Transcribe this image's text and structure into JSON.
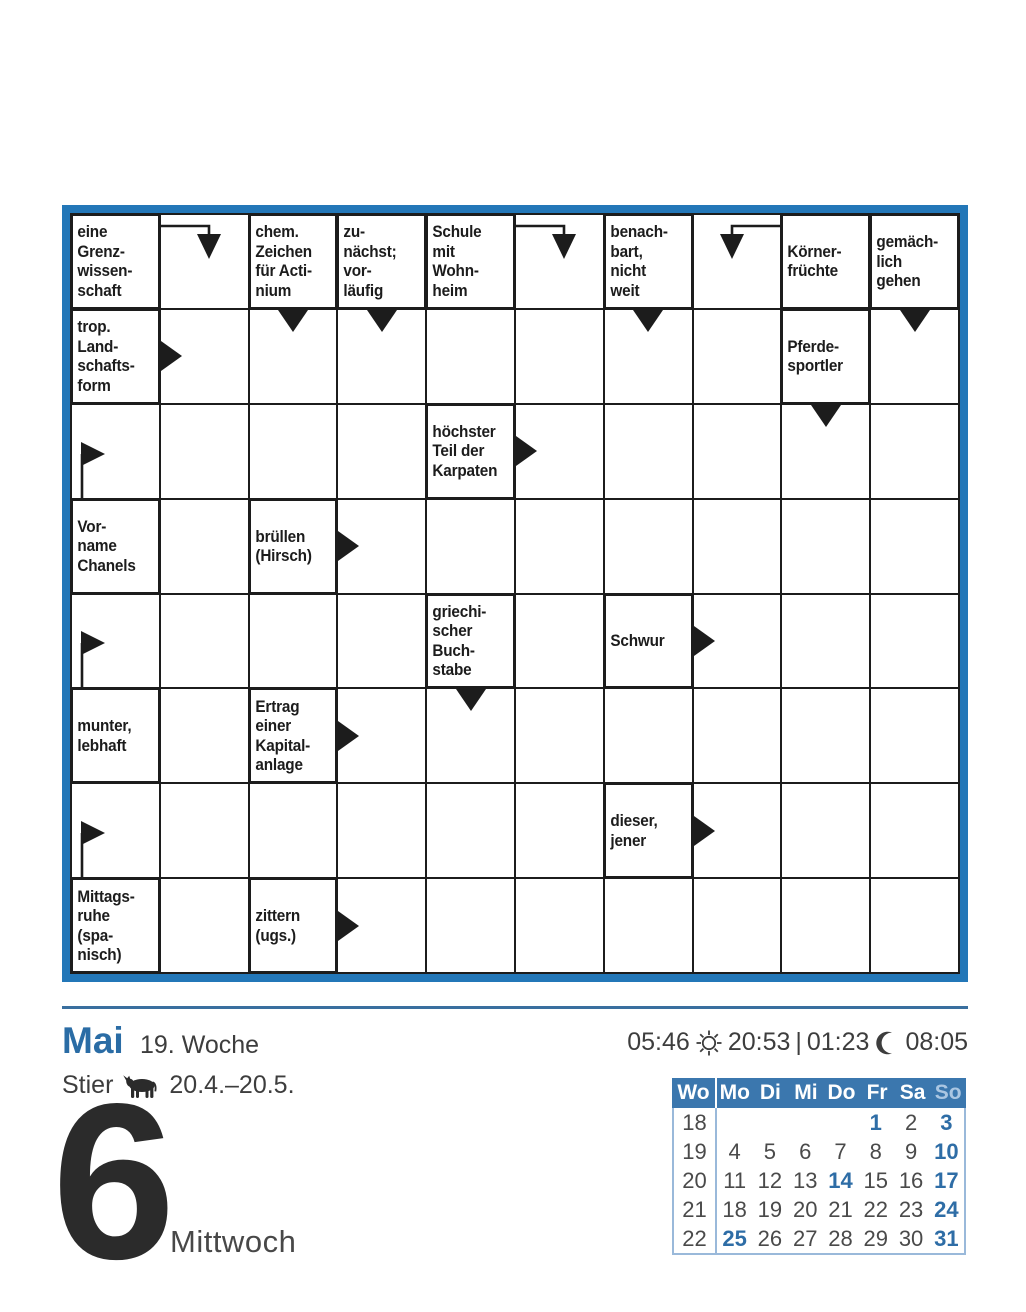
{
  "colors": {
    "frame_blue": "#2377b8",
    "rule_blue": "#3a6f9f",
    "month_blue": "#2a6ca5",
    "calendar_header_bg": "#3b77ae",
    "calendar_day_highlight": "#2e6da6",
    "calendar_sunday_header": "#aac6e2",
    "ink": "#1c1c1c",
    "gray_text": "#3d3d3d"
  },
  "puzzle": {
    "columns": 10,
    "rows": [
      {
        "cells": [
          {
            "clue": "eine\nGrenz-\nwissen-\nschaft"
          },
          {
            "arrows": [
              "elbow-down-from-left"
            ]
          },
          {
            "clue": "chem.\nZeichen\nfür Acti-\nnium"
          },
          {
            "clue": "zu-\nnächst;\nvor-\nläufig"
          },
          {
            "clue": "Schule\nmit\nWohn-\nheim"
          },
          {
            "arrows": [
              "elbow-down-from-left"
            ]
          },
          {
            "clue": "benach-\nbart,\nnicht\nweit"
          },
          {
            "arrows": [
              "elbow-down-from-right"
            ]
          },
          {
            "clue": "Körner-\nfrüchte"
          },
          {
            "clue": "gemäch-\nlich\ngehen"
          }
        ]
      },
      {
        "cells": [
          {
            "clue": "trop.\nLand-\nschafts-\nform"
          },
          {
            "arrows": [
              "right"
            ]
          },
          {
            "arrows": [
              "down"
            ]
          },
          {
            "arrows": [
              "down"
            ]
          },
          {},
          {},
          {
            "arrows": [
              "down"
            ]
          },
          {},
          {
            "clue": "Pferde-\nsportler"
          },
          {
            "arrows": [
              "down"
            ]
          }
        ]
      },
      {
        "cells": [
          {
            "arrows": [
              "elbow-right-from-below"
            ]
          },
          {},
          {},
          {},
          {
            "clue": "höchster\nTeil der\nKarpaten"
          },
          {
            "arrows": [
              "right"
            ]
          },
          {},
          {},
          {
            "arrows": [
              "down"
            ]
          },
          {}
        ]
      },
      {
        "cells": [
          {
            "clue": "Vor-\nname\nChanels"
          },
          {},
          {
            "clue": "brüllen\n(Hirsch)"
          },
          {
            "arrows": [
              "right"
            ]
          },
          {},
          {},
          {},
          {},
          {},
          {}
        ]
      },
      {
        "cells": [
          {
            "arrows": [
              "elbow-right-from-below"
            ]
          },
          {},
          {},
          {},
          {
            "clue": "griechi-\nscher\nBuch-\nstabe"
          },
          {},
          {
            "clue": "Schwur"
          },
          {
            "arrows": [
              "right"
            ]
          },
          {},
          {}
        ]
      },
      {
        "cells": [
          {
            "clue": "munter,\nlebhaft"
          },
          {},
          {
            "clue": "Ertrag\neiner\nKapital-\nanlage"
          },
          {
            "arrows": [
              "right"
            ]
          },
          {
            "arrows": [
              "down"
            ]
          },
          {},
          {},
          {},
          {},
          {}
        ]
      },
      {
        "cells": [
          {
            "arrows": [
              "elbow-right-from-below"
            ]
          },
          {},
          {},
          {},
          {},
          {},
          {
            "clue": "dieser,\njener"
          },
          {
            "arrows": [
              "right"
            ]
          },
          {},
          {}
        ]
      },
      {
        "cells": [
          {
            "clue": "Mittags-\nruhe\n(spa-\nnisch)"
          },
          {},
          {
            "clue": "zittern\n(ugs.)"
          },
          {
            "arrows": [
              "right"
            ]
          },
          {},
          {},
          {},
          {},
          {},
          {}
        ]
      }
    ]
  },
  "footer": {
    "month": "Mai",
    "week_label": "19. Woche",
    "sunrise": "05:46",
    "sunset": "20:53",
    "times_separator": "|",
    "moonrise": "01:23",
    "moonset": "08:05",
    "zodiac_name": "Stier",
    "zodiac_range": "20.4.–20.5.",
    "day_number": "6",
    "weekday": "Mittwoch"
  },
  "mini_calendar": {
    "headers": [
      {
        "label": "Wo"
      },
      {
        "label": "Mo"
      },
      {
        "label": "Di"
      },
      {
        "label": "Mi"
      },
      {
        "label": "Do"
      },
      {
        "label": "Fr"
      },
      {
        "label": "Sa"
      },
      {
        "label": "So",
        "muted": true
      }
    ],
    "weeks": [
      {
        "week": "18",
        "days": [
          null,
          null,
          null,
          null,
          {
            "d": "1",
            "hl": true
          },
          {
            "d": "2"
          },
          {
            "d": "3",
            "hl": true
          }
        ]
      },
      {
        "week": "19",
        "days": [
          {
            "d": "4"
          },
          {
            "d": "5"
          },
          {
            "d": "6"
          },
          {
            "d": "7"
          },
          {
            "d": "8"
          },
          {
            "d": "9"
          },
          {
            "d": "10",
            "hl": true
          }
        ]
      },
      {
        "week": "20",
        "days": [
          {
            "d": "11"
          },
          {
            "d": "12"
          },
          {
            "d": "13"
          },
          {
            "d": "14",
            "hl": true
          },
          {
            "d": "15"
          },
          {
            "d": "16"
          },
          {
            "d": "17",
            "hl": true
          }
        ]
      },
      {
        "week": "21",
        "days": [
          {
            "d": "18"
          },
          {
            "d": "19"
          },
          {
            "d": "20"
          },
          {
            "d": "21"
          },
          {
            "d": "22"
          },
          {
            "d": "23"
          },
          {
            "d": "24",
            "hl": true
          }
        ]
      },
      {
        "week": "22",
        "days": [
          {
            "d": "25",
            "hl": true
          },
          {
            "d": "26"
          },
          {
            "d": "27"
          },
          {
            "d": "28"
          },
          {
            "d": "29"
          },
          {
            "d": "30"
          },
          {
            "d": "31",
            "hl": true
          }
        ]
      }
    ]
  }
}
